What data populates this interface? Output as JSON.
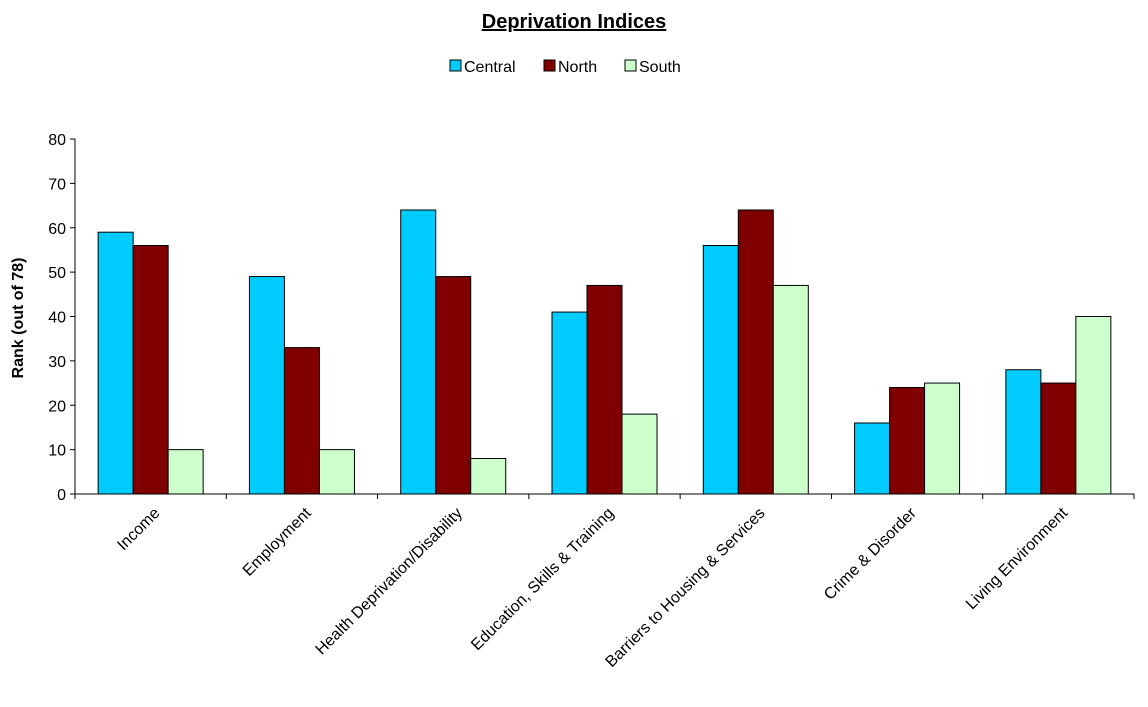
{
  "chart_data": {
    "type": "bar",
    "title": "Deprivation Indices",
    "xlabel": "",
    "ylabel": "Rank (out of 78)",
    "ylim": [
      0,
      80
    ],
    "yticks": [
      0,
      10,
      20,
      30,
      40,
      50,
      60,
      70,
      80
    ],
    "grid": false,
    "legend_position": "top-center",
    "categories": [
      "Income",
      "Employment",
      "Health Deprivation/Disability",
      "Education, Skills & Training",
      "Barriers to Housing & Services",
      "Crime & Disorder",
      "Living Environment"
    ],
    "series": [
      {
        "name": "Central",
        "color": "#00CCFF",
        "values": [
          59,
          49,
          64,
          41,
          56,
          16,
          28
        ]
      },
      {
        "name": "North",
        "color": "#800000",
        "values": [
          56,
          33,
          49,
          47,
          64,
          24,
          25
        ]
      },
      {
        "name": "South",
        "color": "#CCFFCC",
        "values": [
          10,
          10,
          8,
          18,
          47,
          25,
          40
        ]
      }
    ]
  }
}
